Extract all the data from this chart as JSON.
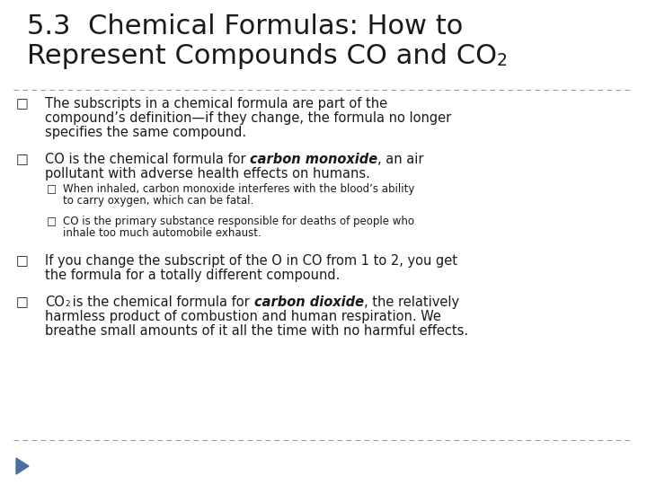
{
  "bg_color": "#ffffff",
  "title_line1": "5.3  Chemical Formulas: How to",
  "title_line2": "Represent Compounds CO and CO",
  "title_sub": "2",
  "title_fontsize": 22,
  "text_color": "#1a1a1a",
  "dashed_line_color": "#999999",
  "arrow_color": "#4a6fa5",
  "main_fontsize": 10.5,
  "sub_fontsize": 8.5,
  "bullet_char": "□"
}
